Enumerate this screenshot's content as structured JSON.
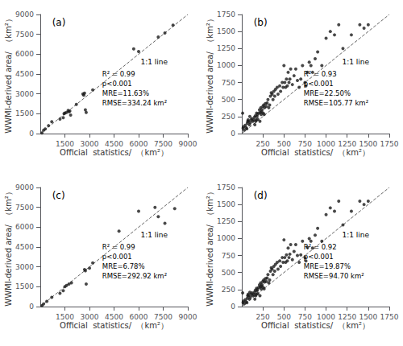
{
  "chart_data": [
    {
      "type": "scatter",
      "title": "(a)",
      "xlabel": "Official  statistics/  （km²）",
      "ylabel": "WWMI-derived area/  （km²）",
      "xlim": [
        0,
        9000
      ],
      "ylim": [
        0,
        9000
      ],
      "xticks": [
        1500,
        3000,
        4500,
        6000,
        7500,
        9000
      ],
      "yticks": [
        0,
        1500,
        3000,
        4500,
        6000,
        7500,
        9000
      ],
      "grid": false,
      "annotations": [
        "R² = 0.99\np<0.001\nMRE=11.63%\nRMSE=334.24 km²",
        "1:1 line"
      ],
      "series": [
        {
          "type": "scatter",
          "color": "#1a1a1a",
          "marker": "circle",
          "x": [
            100,
            200,
            300,
            500,
            700,
            1200,
            1400,
            1450,
            1500,
            1600,
            1700,
            1750,
            1800,
            1850,
            2200,
            2600,
            2650,
            2700,
            2750,
            2800,
            3200,
            5700,
            6000,
            7200,
            7600,
            8100
          ],
          "values": [
            50,
            250,
            350,
            600,
            900,
            1100,
            1200,
            1500,
            1550,
            1600,
            1750,
            1650,
            1700,
            1400,
            2200,
            3000,
            2900,
            3050,
            1800,
            1600,
            3300,
            6400,
            6200,
            7300,
            7600,
            8200
          ]
        },
        {
          "type": "line",
          "color": "#666666",
          "line_style": "dashed",
          "x": [
            0,
            9000
          ],
          "values": [
            0,
            9000
          ]
        }
      ]
    },
    {
      "type": "scatter",
      "title": "(b)",
      "xlabel": "Official  statistics/  （km²）",
      "ylabel": "WWMI-derived area/  （km²）",
      "xlim": [
        0,
        1750
      ],
      "ylim": [
        0,
        1750
      ],
      "xticks": [
        250,
        500,
        750,
        1000,
        1250,
        1500,
        1750
      ],
      "yticks": [
        0,
        250,
        500,
        750,
        1000,
        1250,
        1500,
        1750
      ],
      "grid": false,
      "annotations": [
        "R² = 0.93\np<0.001\nMRE=22.50%\nRMSE=105.77 km²",
        "1:1 line"
      ],
      "series": [
        {
          "type": "scatter",
          "color": "#1a1a1a",
          "marker": "circle",
          "x": [
            10,
            15,
            20,
            30,
            40,
            50,
            60,
            65,
            70,
            75,
            80,
            90,
            95,
            100,
            110,
            120,
            130,
            140,
            150,
            155,
            160,
            165,
            170,
            175,
            180,
            185,
            190,
            200,
            210,
            215,
            220,
            225,
            230,
            235,
            240,
            250,
            255,
            260,
            265,
            270,
            280,
            290,
            300,
            310,
            320,
            330,
            340,
            350,
            360,
            370,
            380,
            390,
            400,
            420,
            430,
            450,
            460,
            480,
            490,
            500,
            510,
            520,
            530,
            540,
            550,
            560,
            570,
            580,
            600,
            620,
            640,
            660,
            680,
            700,
            720,
            750,
            760,
            780,
            800,
            820,
            840,
            870,
            900,
            950,
            1000,
            1050,
            1100,
            1150,
            1200,
            1300,
            1400,
            1450,
            1500
          ],
          "values": [
            300,
            80,
            100,
            50,
            120,
            90,
            70,
            150,
            180,
            200,
            180,
            130,
            250,
            160,
            200,
            220,
            180,
            200,
            240,
            130,
            260,
            180,
            200,
            300,
            250,
            280,
            210,
            300,
            350,
            180,
            310,
            380,
            280,
            320,
            350,
            400,
            300,
            420,
            280,
            380,
            440,
            400,
            450,
            500,
            380,
            420,
            550,
            600,
            580,
            500,
            620,
            550,
            650,
            680,
            580,
            700,
            620,
            750,
            680,
            1000,
            750,
            680,
            800,
            700,
            900,
            750,
            800,
            950,
            720,
            850,
            950,
            780,
            680,
            800,
            1000,
            750,
            700,
            900,
            1050,
            1000,
            900,
            1100,
            1200,
            1000,
            1400,
            1500,
            1450,
            1600,
            1250,
            1450,
            1600,
            1550,
            1600
          ]
        },
        {
          "type": "line",
          "color": "#666666",
          "line_style": "dashed",
          "x": [
            0,
            1750
          ],
          "values": [
            0,
            1750
          ]
        }
      ]
    },
    {
      "type": "scatter",
      "title": "(c)",
      "xlabel": "Official  statistics/  （km²）",
      "ylabel": "WWMI-derived area/  （km²）",
      "xlim": [
        0,
        9000
      ],
      "ylim": [
        0,
        9000
      ],
      "xticks": [
        1500,
        3000,
        4500,
        6000,
        7500,
        9000
      ],
      "yticks": [
        0,
        1500,
        3000,
        4500,
        6000,
        7500,
        9000
      ],
      "grid": false,
      "annotations": [
        "R² = 0.99\np<0.001\nMRE=6.78%\nRMSE=292.92 km²",
        "1:1 line"
      ],
      "series": [
        {
          "type": "scatter",
          "color": "#1a1a1a",
          "marker": "circle",
          "x": [
            100,
            200,
            400,
            700,
            1200,
            1400,
            1500,
            1600,
            1750,
            1900,
            2700,
            2750,
            2800,
            3000,
            3200,
            4800,
            6000,
            7000,
            7200,
            7600,
            8200
          ],
          "values": [
            80,
            200,
            400,
            700,
            1000,
            1200,
            1500,
            1600,
            1700,
            1800,
            2800,
            2700,
            1700,
            2900,
            3300,
            5700,
            7200,
            7500,
            6800,
            6300,
            7400
          ]
        },
        {
          "type": "line",
          "color": "#666666",
          "line_style": "dashed",
          "x": [
            0,
            9000
          ],
          "values": [
            0,
            9000
          ]
        }
      ]
    },
    {
      "type": "scatter",
      "title": "(d)",
      "xlabel": "Official  statistics/  （km²）",
      "ylabel": "WWMI-derived area/  （km²）",
      "xlim": [
        0,
        1750
      ],
      "ylim": [
        0,
        1750
      ],
      "xticks": [
        250,
        500,
        750,
        1000,
        1250,
        1500,
        1750
      ],
      "yticks": [
        0,
        250,
        500,
        750,
        1000,
        1250,
        1500,
        1750
      ],
      "grid": false,
      "annotations": [
        "R² = 0.92\np<0.001\nMRE=19.87%\nRMSE=94.70 km²",
        "1:1 line"
      ],
      "series": [
        {
          "type": "scatter",
          "color": "#1a1a1a",
          "marker": "circle",
          "x": [
            10,
            15,
            20,
            30,
            40,
            50,
            60,
            65,
            70,
            75,
            80,
            90,
            95,
            100,
            110,
            120,
            130,
            140,
            150,
            155,
            160,
            165,
            170,
            175,
            180,
            185,
            190,
            200,
            210,
            215,
            220,
            225,
            230,
            235,
            240,
            250,
            255,
            260,
            265,
            270,
            280,
            290,
            300,
            310,
            320,
            330,
            340,
            350,
            360,
            370,
            380,
            390,
            400,
            420,
            430,
            450,
            460,
            480,
            490,
            500,
            510,
            520,
            530,
            540,
            550,
            560,
            570,
            580,
            600,
            620,
            640,
            660,
            680,
            700,
            720,
            750,
            760,
            780,
            800,
            820,
            840,
            870,
            900,
            950,
            1000,
            1050,
            1100,
            1150,
            1200,
            1300,
            1400,
            1450,
            1500
          ],
          "values": [
            200,
            60,
            80,
            40,
            100,
            70,
            55,
            120,
            160,
            180,
            160,
            110,
            210,
            140,
            180,
            200,
            160,
            180,
            210,
            110,
            240,
            160,
            180,
            270,
            230,
            250,
            190,
            280,
            320,
            160,
            290,
            350,
            260,
            300,
            320,
            370,
            280,
            390,
            260,
            360,
            410,
            370,
            420,
            470,
            350,
            390,
            520,
            570,
            550,
            470,
            590,
            520,
            620,
            650,
            550,
            670,
            590,
            720,
            650,
            980,
            720,
            650,
            760,
            670,
            860,
            720,
            770,
            910,
            690,
            810,
            910,
            750,
            650,
            760,
            960,
            720,
            670,
            870,
            1000,
            960,
            860,
            1050,
            1150,
            960,
            1350,
            1450,
            1400,
            1550,
            1200,
            1400,
            1550,
            1500,
            1550
          ]
        },
        {
          "type": "line",
          "color": "#666666",
          "line_style": "dashed",
          "x": [
            0,
            1750
          ],
          "values": [
            0,
            1750
          ]
        }
      ]
    }
  ]
}
